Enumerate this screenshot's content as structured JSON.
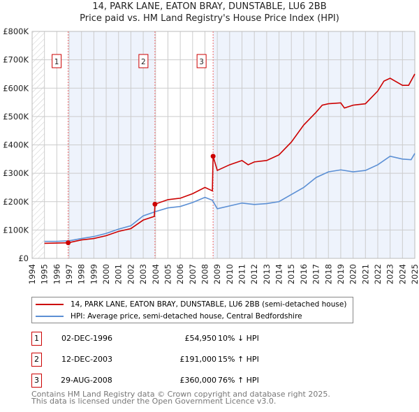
{
  "chart_data": {
    "type": "line",
    "title": "14, PARK LANE, EATON BRAY, DUNSTABLE, LU6 2BB",
    "subtitle": "Price paid vs. HM Land Registry's House Price Index (HPI)",
    "xlim": [
      1994,
      2025
    ],
    "ylim": [
      0,
      800000
    ],
    "y_ticks": [
      {
        "v": 0,
        "l": "£0"
      },
      {
        "v": 100000,
        "l": "£100K"
      },
      {
        "v": 200000,
        "l": "£200K"
      },
      {
        "v": 300000,
        "l": "£300K"
      },
      {
        "v": 400000,
        "l": "£400K"
      },
      {
        "v": 500000,
        "l": "£500K"
      },
      {
        "v": 600000,
        "l": "£600K"
      },
      {
        "v": 700000,
        "l": "£700K"
      },
      {
        "v": 800000,
        "l": "£800K"
      }
    ],
    "x_ticks": [
      "1994",
      "1995",
      "1996",
      "1997",
      "1998",
      "1999",
      "2000",
      "2001",
      "2002",
      "2003",
      "2004",
      "2005",
      "2006",
      "2007",
      "2008",
      "2009",
      "2010",
      "2011",
      "2012",
      "2013",
      "2014",
      "2015",
      "2016",
      "2017",
      "2018",
      "2019",
      "2020",
      "2021",
      "2022",
      "2023",
      "2024",
      "2025"
    ],
    "series": [
      {
        "name": "14, PARK LANE, EATON BRAY, DUNSTABLE, LU6 2BB (semi-detached house)",
        "color": "#cc0000",
        "x": [
          1995,
          1996,
          1996.92,
          1998,
          1999,
          2000,
          2001,
          2002,
          2003,
          2003.9,
          2003.95,
          2005,
          2006,
          2007,
          2008,
          2008.6,
          2008.66,
          2009,
          2010,
          2011,
          2011.5,
          2012,
          2013,
          2014,
          2015,
          2016,
          2017,
          2017.5,
          2018,
          2019,
          2019.3,
          2020,
          2021,
          2022,
          2022.5,
          2023,
          2024,
          2024.5,
          2025
        ],
        "y": [
          53000,
          54000,
          54950,
          65000,
          70000,
          80000,
          95000,
          105000,
          135000,
          148000,
          191000,
          207000,
          212000,
          228000,
          250000,
          238000,
          360000,
          310000,
          330000,
          345000,
          330000,
          340000,
          345000,
          365000,
          410000,
          470000,
          515000,
          540000,
          545000,
          548000,
          530000,
          540000,
          545000,
          590000,
          625000,
          635000,
          610000,
          610000,
          650000
        ]
      },
      {
        "name": "HPI: Average price, semi-detached house, Central Bedfordshire",
        "color": "#5b8fd4",
        "x": [
          1995,
          1996,
          1997,
          1998,
          1999,
          2000,
          2001,
          2002,
          2003,
          2004,
          2005,
          2006,
          2007,
          2008,
          2008.6,
          2009,
          2010,
          2011,
          2012,
          2013,
          2014,
          2015,
          2016,
          2017,
          2018,
          2019,
          2020,
          2021,
          2022,
          2023,
          2024,
          2024.7,
          2025
        ],
        "y": [
          60000,
          60000,
          62000,
          70000,
          77000,
          88000,
          103000,
          115000,
          150000,
          165000,
          178000,
          183000,
          197000,
          215000,
          205000,
          175000,
          185000,
          195000,
          190000,
          193000,
          200000,
          225000,
          250000,
          285000,
          305000,
          312000,
          305000,
          310000,
          330000,
          360000,
          350000,
          348000,
          370000
        ]
      }
    ],
    "sales": [
      {
        "n": "1",
        "x": 1996.92,
        "price": 54950,
        "date": "02-DEC-1996",
        "price_label": "£54,950",
        "hpi": "10% ↓ HPI"
      },
      {
        "n": "2",
        "x": 2003.95,
        "price": 191000,
        "date": "12-DEC-2003",
        "price_label": "£191,000",
        "hpi": "15% ↑ HPI"
      },
      {
        "n": "3",
        "x": 2008.66,
        "price": 360000,
        "date": "29-AUG-2008",
        "price_label": "£360,000",
        "hpi": "76% ↑ HPI"
      }
    ]
  },
  "footer": [
    "Contains HM Land Registry data © Crown copyright and database right 2025.",
    "This data is licensed under the Open Government Licence v3.0."
  ]
}
